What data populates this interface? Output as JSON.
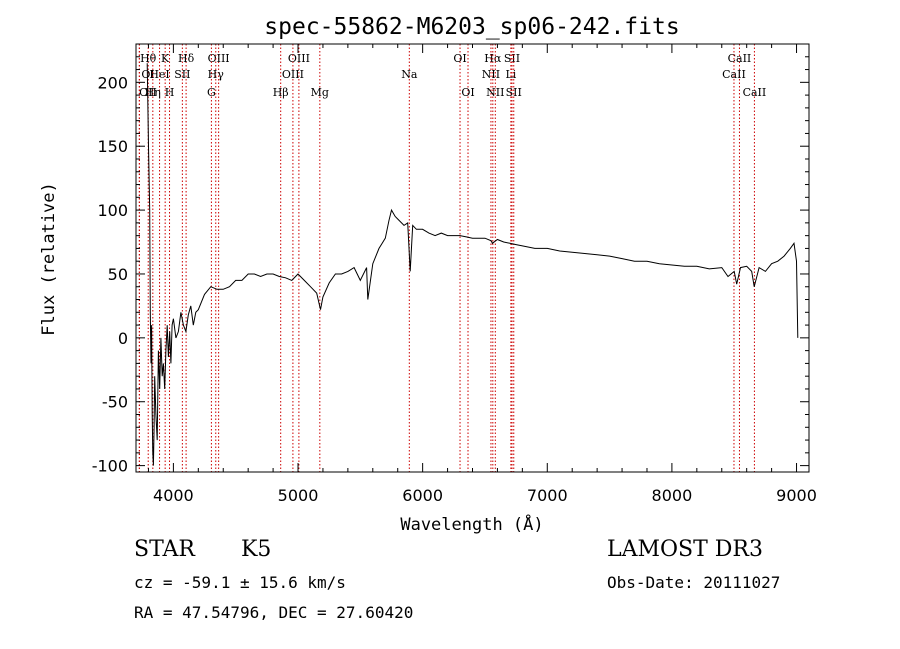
{
  "chart_data": {
    "type": "line",
    "title": "spec-55862-M6203_sp06-242.fits",
    "xlabel": "Wavelength (Å)",
    "ylabel": "Flux (relative)",
    "xlim": [
      3700,
      9100
    ],
    "ylim": [
      -105,
      230
    ],
    "x_ticks": [
      4000,
      5000,
      6000,
      7000,
      8000,
      9000
    ],
    "x_tick_labels": [
      "4000",
      "5000",
      "6000",
      "7000",
      "8000",
      "9000"
    ],
    "y_ticks": [
      -100,
      -50,
      0,
      50,
      100,
      150,
      200
    ],
    "y_tick_labels": [
      "-100",
      "-50",
      "0",
      "50",
      "100",
      "150",
      "200"
    ],
    "series": [
      {
        "name": "spectrum",
        "x": [
          3790,
          3800,
          3810,
          3815,
          3820,
          3825,
          3830,
          3835,
          3840,
          3845,
          3850,
          3860,
          3870,
          3880,
          3890,
          3900,
          3910,
          3920,
          3930,
          3940,
          3950,
          3960,
          3970,
          3980,
          3990,
          4000,
          4020,
          4040,
          4060,
          4080,
          4100,
          4120,
          4140,
          4160,
          4180,
          4200,
          4250,
          4300,
          4350,
          4400,
          4450,
          4500,
          4550,
          4600,
          4650,
          4700,
          4750,
          4800,
          4850,
          4900,
          4950,
          5000,
          5050,
          5100,
          5150,
          5180,
          5200,
          5250,
          5300,
          5350,
          5400,
          5450,
          5500,
          5550,
          5560,
          5600,
          5650,
          5700,
          5730,
          5750,
          5780,
          5800,
          5850,
          5880,
          5900,
          5920,
          5950,
          6000,
          6050,
          6100,
          6150,
          6200,
          6250,
          6300,
          6350,
          6400,
          6450,
          6500,
          6550,
          6560,
          6600,
          6650,
          6700,
          6750,
          6800,
          6900,
          7000,
          7100,
          7200,
          7300,
          7400,
          7500,
          7600,
          7700,
          7800,
          7900,
          8000,
          8100,
          8200,
          8300,
          8400,
          8450,
          8500,
          8520,
          8550,
          8600,
          8640,
          8660,
          8700,
          8750,
          8800,
          8850,
          8900,
          8950,
          8980,
          9000,
          9010
        ],
        "y": [
          215,
          150,
          100,
          20,
          -20,
          10,
          -60,
          -90,
          -100,
          -70,
          -30,
          -60,
          -80,
          -10,
          -40,
          0,
          -30,
          -20,
          -40,
          -10,
          10,
          -15,
          5,
          -20,
          10,
          15,
          0,
          5,
          20,
          10,
          5,
          18,
          25,
          10,
          20,
          22,
          34,
          40,
          38,
          38,
          40,
          45,
          45,
          50,
          50,
          48,
          50,
          50,
          48,
          47,
          45,
          50,
          45,
          40,
          35,
          22,
          32,
          43,
          50,
          50,
          52,
          55,
          45,
          55,
          30,
          58,
          70,
          78,
          92,
          100,
          95,
          93,
          88,
          90,
          52,
          88,
          85,
          85,
          82,
          80,
          82,
          80,
          80,
          80,
          79,
          78,
          78,
          78,
          76,
          74,
          77,
          75,
          74,
          73,
          72,
          70,
          70,
          68,
          67,
          66,
          65,
          64,
          62,
          60,
          60,
          58,
          57,
          56,
          56,
          54,
          55,
          48,
          52,
          42,
          55,
          56,
          52,
          40,
          55,
          52,
          58,
          60,
          64,
          70,
          74,
          60,
          0
        ]
      }
    ],
    "lines_top": [
      {
        "label": "Hθ",
        "x": 3798
      },
      {
        "label": "K",
        "x": 3934
      },
      {
        "label": "Hδ",
        "x": 4102
      },
      {
        "label": "OIII",
        "x": 4363
      },
      {
        "label": "OIII",
        "x": 5007
      },
      {
        "label": "OI",
        "x": 6300
      },
      {
        "label": "Hα",
        "x": 6563
      },
      {
        "label": "SII",
        "x": 6717
      },
      {
        "label": "CaII",
        "x": 8542
      }
    ],
    "lines_mid": [
      {
        "label": "OI",
        "x": 3727
      },
      {
        "label": "HeI",
        "x": 3889
      },
      {
        "label": "SII",
        "x": 4072
      },
      {
        "label": "Hγ",
        "x": 4340
      },
      {
        "label": "OIII",
        "x": 4959
      },
      {
        "label": "Na",
        "x": 5893
      },
      {
        "label": "NII",
        "x": 6548
      },
      {
        "label": "Li",
        "x": 6708
      },
      {
        "label": "CaII",
        "x": 8498
      }
    ],
    "lines_low": [
      {
        "label": "OII",
        "x": 3727
      },
      {
        "label": "Hη",
        "x": 3835
      },
      {
        "label": "H",
        "x": 3969
      },
      {
        "label": "G",
        "x": 4305
      },
      {
        "label": "Hβ",
        "x": 4861
      },
      {
        "label": "Mg",
        "x": 5175
      },
      {
        "label": "OI",
        "x": 6364
      },
      {
        "label": "NII",
        "x": 6583
      },
      {
        "label": "SII",
        "x": 6731
      },
      {
        "label": "CaII",
        "x": 8662
      }
    ],
    "line_color": "#cc0000"
  },
  "info": {
    "object_type": "STAR",
    "subclass": "K5",
    "survey": "LAMOST DR3",
    "velocity": "cz = -59.1 ± 15.6 km/s",
    "obs_date": "Obs-Date: 20111027",
    "coords": "RA =  47.54796, DEC =  27.60420"
  }
}
